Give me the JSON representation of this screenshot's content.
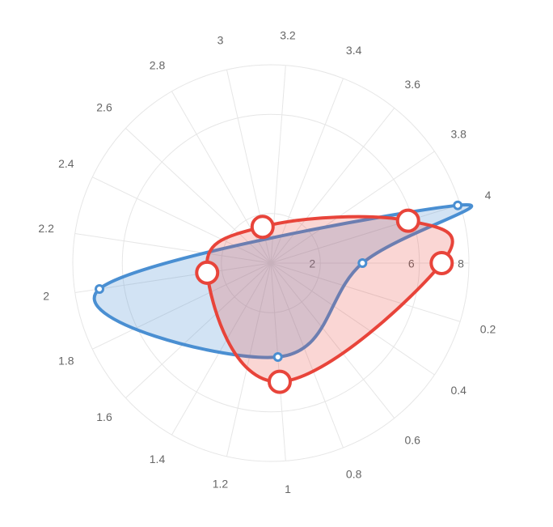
{
  "chart_data": {
    "type": "polar",
    "xlim": [
      0,
      4.2
    ],
    "xticks": [
      0.2,
      0.4,
      0.6,
      0.8,
      1,
      1.2,
      1.4,
      1.6,
      1.8,
      2,
      2.2,
      2.4,
      2.6,
      2.8,
      3,
      3.2,
      3.4,
      3.6,
      3.8,
      4
    ],
    "ylim": [
      0,
      8
    ],
    "yticks": [
      2,
      6,
      8
    ],
    "grid": true,
    "series": [
      {
        "color": "#4a8fd2",
        "x": [
          0,
          1,
          2,
          4
        ],
        "values": [
          3.7,
          3.8,
          7.0,
          7.9
        ]
      },
      {
        "color": "#e8443a",
        "x": [
          0,
          1,
          2,
          3,
          4
        ],
        "values": [
          6.9,
          4.8,
          2.6,
          1.5,
          5.8
        ]
      }
    ]
  }
}
